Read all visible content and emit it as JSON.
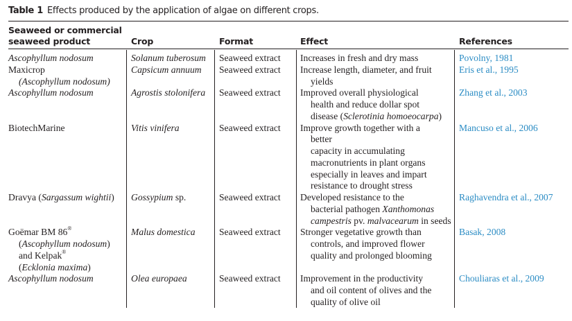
{
  "caption": {
    "label": "Table 1",
    "text": "Effects produced by the application of algae on different crops."
  },
  "headers": [
    "Seaweed or commercial",
    "seaweed product",
    "Crop",
    "Format",
    "Effect",
    "References"
  ],
  "colors": {
    "text": "#231f20",
    "reference_link": "#2b8cc4"
  },
  "rows": [
    {
      "product": [
        [
          {
            "t": "Ascophyllum nodosum",
            "s": "i"
          }
        ]
      ],
      "crop": [
        [
          {
            "t": "Solanum tuberosum",
            "s": "i"
          }
        ]
      ],
      "format": "Seaweed extract",
      "effect": [
        [
          {
            "t": "Increases in fresh and dry mass"
          }
        ]
      ],
      "reference": "Povolny, 1981"
    },
    {
      "product": [
        [
          {
            "t": "Maxicrop"
          }
        ],
        [
          {
            "t": "(Ascophyllum nodosum)",
            "s": "i"
          }
        ]
      ],
      "crop": [
        [
          {
            "t": "Capsicum annuum",
            "s": "i"
          }
        ]
      ],
      "format": "Seaweed extract",
      "effect": [
        [
          {
            "t": "Increase length, diameter, and fruit"
          }
        ],
        [
          {
            "t": "yields"
          }
        ]
      ],
      "reference": "Eris et al., 1995"
    },
    {
      "product": [
        [
          {
            "t": "Ascophyllum nodosum",
            "s": "i"
          }
        ]
      ],
      "crop": [
        [
          {
            "t": "Agrostis stolonifera",
            "s": "i"
          }
        ]
      ],
      "format": "Seaweed extract",
      "effect": [
        [
          {
            "t": "Improved overall physiological"
          }
        ],
        [
          {
            "t": "health and reduce dollar spot"
          }
        ],
        [
          {
            "t": "disease ("
          },
          {
            "t": "Sclerotinia homoeocarpa",
            "s": "i"
          },
          {
            "t": ")"
          }
        ]
      ],
      "reference": "Zhang et al., 2003"
    },
    {
      "product": [
        [
          {
            "t": "BiotechMarine"
          }
        ]
      ],
      "crop": [
        [
          {
            "t": "Vitis vinifera",
            "s": "i"
          }
        ]
      ],
      "format": "Seaweed extract",
      "effect": [
        [
          {
            "t": "Improve growth together with a"
          }
        ],
        [
          {
            "t": "better"
          }
        ],
        [
          {
            "t": "capacity in accumulating"
          }
        ],
        [
          {
            "t": "macronutrients in plant organs"
          }
        ],
        [
          {
            "t": "especially in leaves and impart"
          }
        ],
        [
          {
            "t": "resistance to drought stress"
          }
        ]
      ],
      "reference": "Mancuso et al., 2006"
    },
    {
      "product": [
        [
          {
            "t": "Dravya ("
          },
          {
            "t": "Sargassum wightii",
            "s": "i"
          },
          {
            "t": ")"
          }
        ]
      ],
      "crop": [
        [
          {
            "t": "Gossypium",
            "s": "i"
          },
          {
            "t": " sp."
          }
        ]
      ],
      "format": "Seaweed extract",
      "effect": [
        [
          {
            "t": "Developed resistance to the"
          }
        ],
        [
          {
            "t": "bacterial pathogen "
          },
          {
            "t": "Xanthomonas",
            "s": "i"
          }
        ],
        [
          {
            "t": "campestris",
            "s": "i"
          },
          {
            "t": " pv. "
          },
          {
            "t": "malvacearum",
            "s": "i"
          },
          {
            "t": " in seeds"
          }
        ]
      ],
      "reference": "Raghavendra et al., 2007"
    },
    {
      "product": [
        [
          {
            "t": "Goëmar BM 86"
          },
          {
            "t": "®",
            "s": "sup"
          }
        ],
        [
          {
            "t": "("
          },
          {
            "t": "Ascophyllum nodosum",
            "s": "i"
          },
          {
            "t": ")"
          }
        ],
        [
          {
            "t": "and Kelpak"
          },
          {
            "t": "®",
            "s": "sup"
          }
        ],
        [
          {
            "t": "("
          },
          {
            "t": "Ecklonia maxima",
            "s": "i"
          },
          {
            "t": ")"
          }
        ]
      ],
      "crop": [
        [
          {
            "t": "Malus domestica",
            "s": "i"
          }
        ]
      ],
      "format": "Seaweed extract",
      "effect": [
        [
          {
            "t": "Stronger vegetative growth than"
          }
        ],
        [
          {
            "t": "controls, and improved flower"
          }
        ],
        [
          {
            "t": "quality and prolonged blooming"
          }
        ]
      ],
      "reference": "Basak, 2008"
    },
    {
      "product": [
        [
          {
            "t": "Ascophyllum nodosum",
            "s": "i"
          }
        ]
      ],
      "crop": [
        [
          {
            "t": "Olea europaea",
            "s": "i"
          }
        ]
      ],
      "format": "Seaweed extract",
      "effect": [
        [
          {
            "t": "Improvement in the productivity"
          }
        ],
        [
          {
            "t": "and oil content of olives and the"
          }
        ],
        [
          {
            "t": "quality of olive oil"
          }
        ]
      ],
      "reference": "Chouliaras et al., 2009"
    }
  ]
}
